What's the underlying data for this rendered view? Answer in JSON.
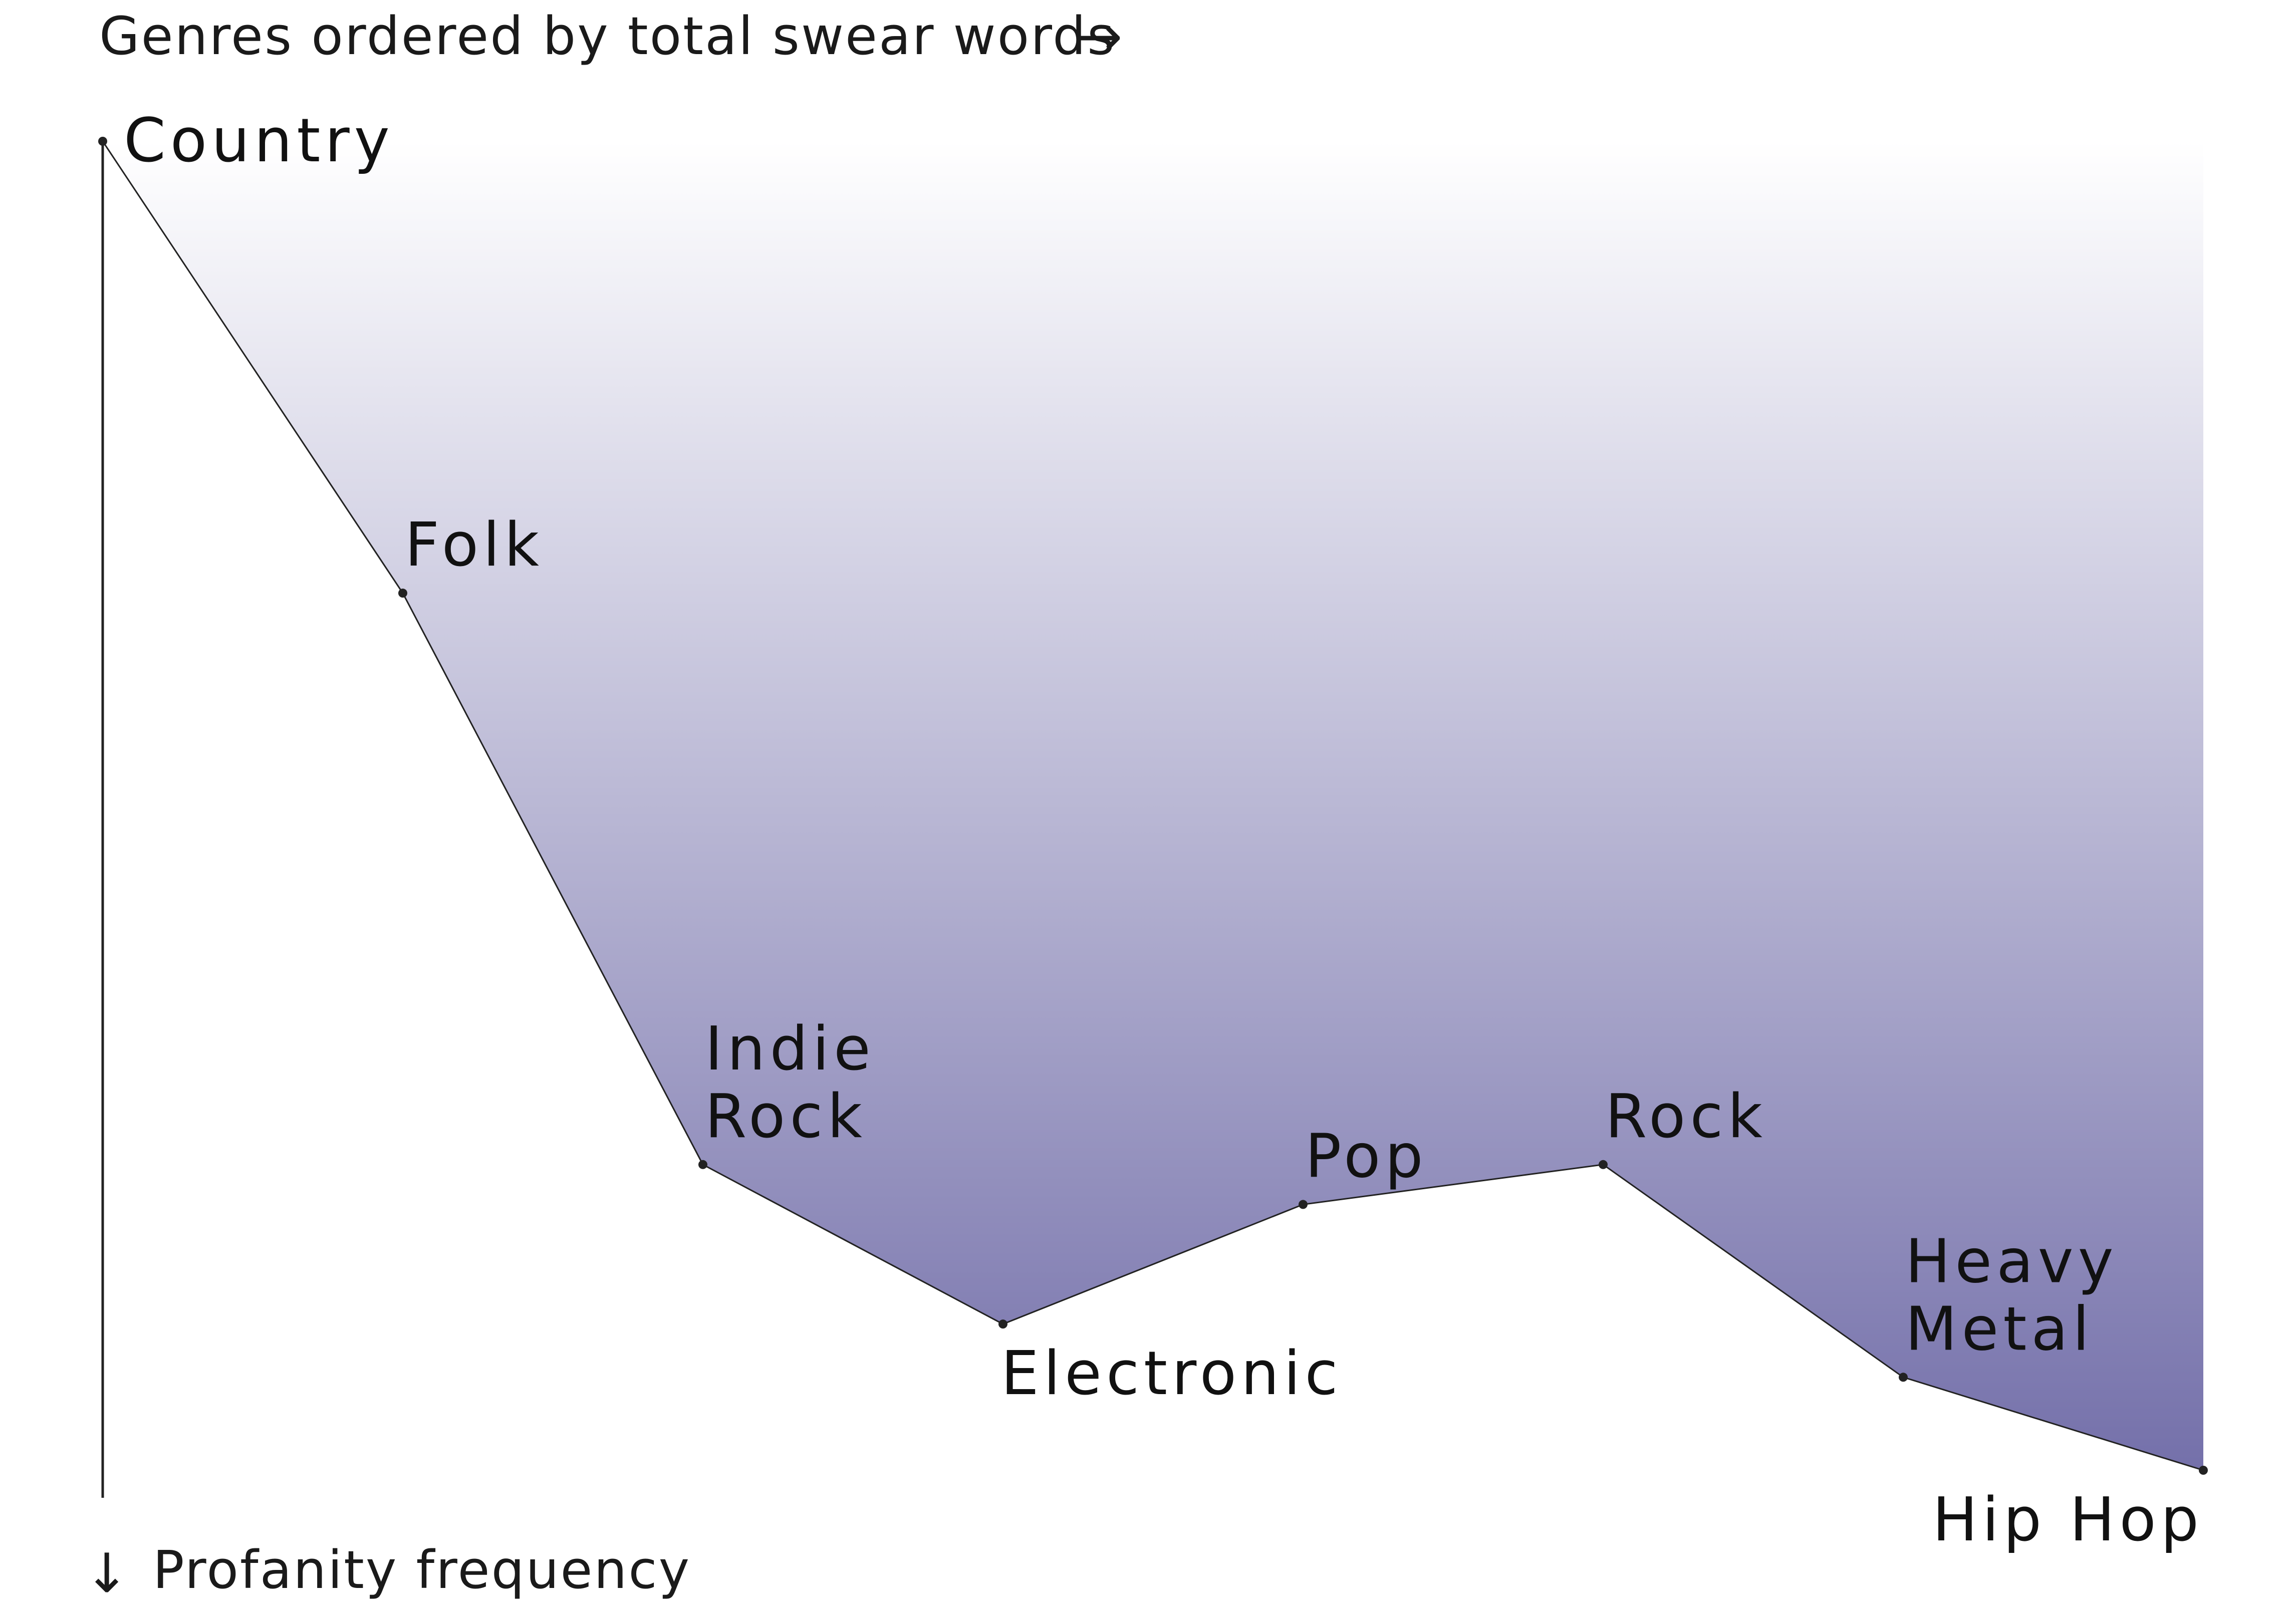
{
  "x_axis_caption": "Genres ordered by total swear words",
  "x_axis_arrow": "→",
  "y_axis_caption": "Profanity frequency",
  "y_axis_arrow": "↓",
  "colors": {
    "line": "#222222",
    "fill_top": "#ffffff",
    "fill_bottom": "#7470aa",
    "text": "#111111"
  },
  "chart_data": {
    "type": "area",
    "title": "",
    "xlabel": "Genres ordered by total swear words",
    "ylabel": "Profanity frequency",
    "y_direction": "down",
    "categories": [
      "Country",
      "Folk",
      "Indie Rock",
      "Electronic",
      "Pop",
      "Rock",
      "Heavy Metal",
      "Hip Hop"
    ],
    "values": [
      0,
      0.34,
      0.77,
      0.89,
      0.8,
      0.77,
      0.93,
      1.0
    ],
    "ylim": [
      0,
      1
    ],
    "grid": false,
    "legend": "none",
    "point_labels": [
      {
        "text": "Country",
        "lines": [
          "Country"
        ],
        "anchor": "right"
      },
      {
        "text": "Folk",
        "lines": [
          "Folk"
        ],
        "anchor": "above-right"
      },
      {
        "text": "Indie Rock",
        "lines": [
          "Indie",
          "Rock"
        ],
        "anchor": "above-right"
      },
      {
        "text": "Electronic",
        "lines": [
          "Electronic"
        ],
        "anchor": "below-right"
      },
      {
        "text": "Pop",
        "lines": [
          "Pop"
        ],
        "anchor": "above-right"
      },
      {
        "text": "Rock",
        "lines": [
          "Rock"
        ],
        "anchor": "above-right"
      },
      {
        "text": "Heavy Metal",
        "lines": [
          "Heavy",
          "Metal"
        ],
        "anchor": "above-right"
      },
      {
        "text": "Hip Hop",
        "lines": [
          "Hip Hop"
        ],
        "anchor": "below-left"
      }
    ]
  }
}
